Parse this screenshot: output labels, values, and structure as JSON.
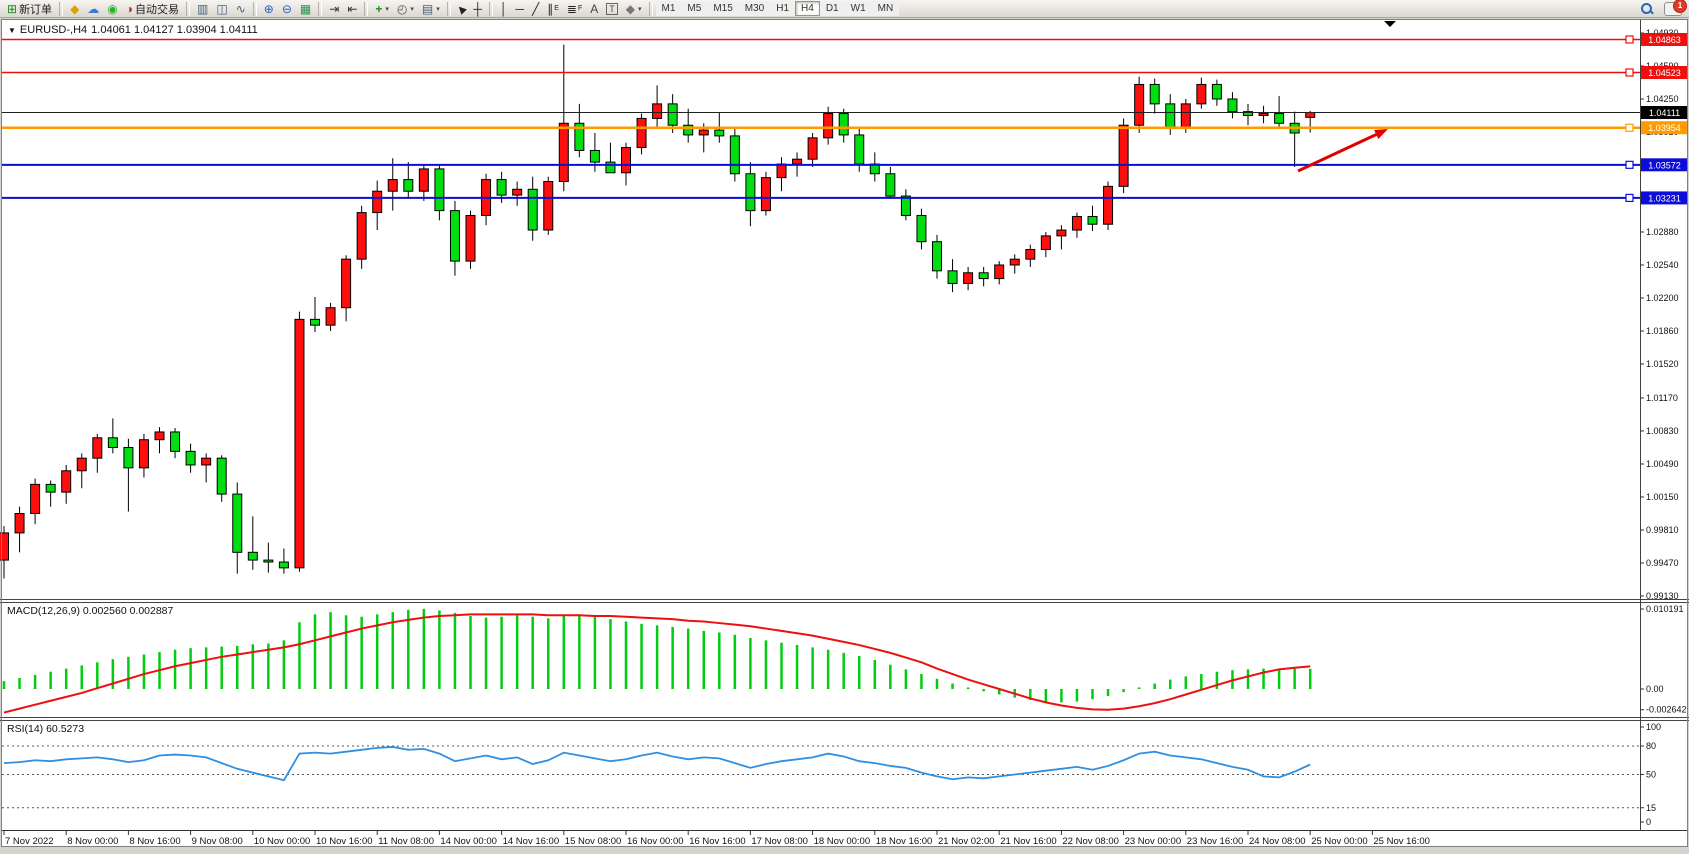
{
  "toolbar": {
    "items": [
      {
        "type": "button",
        "name": "new-order",
        "glyph": "⊞",
        "color": "#1a8f1a",
        "label": "新订单"
      },
      {
        "type": "sep"
      },
      {
        "type": "button",
        "name": "metaeditor",
        "glyph": "◆",
        "color": "#d9a300"
      },
      {
        "type": "button",
        "name": "community",
        "glyph": "☁",
        "color": "#3a7bd5"
      },
      {
        "type": "button",
        "name": "signals",
        "glyph": "◉",
        "color": "#28b428"
      },
      {
        "type": "button",
        "name": "autotrading",
        "glyph": "◑",
        "color": "#b03030",
        "label": "自动交易"
      },
      {
        "type": "sep"
      },
      {
        "type": "button",
        "name": "bar-chart",
        "glyph": "▥",
        "color": "#44617e"
      },
      {
        "type": "button",
        "name": "candlestick-chart",
        "glyph": "◫",
        "color": "#44617e"
      },
      {
        "type": "button",
        "name": "line-chart",
        "glyph": "∿",
        "color": "#44617e"
      },
      {
        "type": "sep"
      },
      {
        "type": "button",
        "name": "zoom-in",
        "glyph": "⊕",
        "color": "#2a62c8"
      },
      {
        "type": "button",
        "name": "zoom-out",
        "glyph": "⊖",
        "color": "#2a62c8"
      },
      {
        "type": "button",
        "name": "tile-windows",
        "glyph": "▦",
        "color": "#2f8f4f"
      },
      {
        "type": "sep"
      },
      {
        "type": "button",
        "name": "auto-scroll",
        "glyph": "⇥",
        "color": "#333333"
      },
      {
        "type": "button",
        "name": "chart-shift",
        "glyph": "⇤",
        "color": "#333333"
      },
      {
        "type": "sep"
      },
      {
        "type": "button",
        "name": "indicators",
        "glyph": "+",
        "color": "#1a8f1a",
        "bold": true,
        "caret": "▾"
      },
      {
        "type": "button",
        "name": "periods",
        "glyph": "◴",
        "color": "#555555",
        "caret": "▾"
      },
      {
        "type": "button",
        "name": "templates",
        "glyph": "▤",
        "color": "#44617e",
        "caret": "▾"
      },
      {
        "type": "sep"
      },
      {
        "type": "button",
        "name": "cursor",
        "glyph": "▶",
        "color": "#222222",
        "rot": true
      },
      {
        "type": "button",
        "name": "crosshair",
        "glyph": "┼",
        "color": "#222222"
      },
      {
        "type": "sep"
      },
      {
        "type": "button",
        "name": "vertical-line",
        "glyph": "│",
        "color": "#222222"
      },
      {
        "type": "button",
        "name": "horizontal-line",
        "glyph": "─",
        "color": "#222222"
      },
      {
        "type": "button",
        "name": "trendline",
        "glyph": "╱",
        "color": "#222222"
      },
      {
        "type": "button",
        "name": "equidistant-channel",
        "glyph": "∥",
        "color": "#222222",
        "sub": "E"
      },
      {
        "type": "button",
        "name": "fibonacci",
        "glyph": "≣",
        "color": "#222222",
        "sub": "F"
      },
      {
        "type": "button",
        "name": "text",
        "glyph": "A",
        "color": "#444444"
      },
      {
        "type": "button",
        "name": "text-label",
        "glyph": "T",
        "color": "#444444",
        "boxed": true
      },
      {
        "type": "button",
        "name": "arrows",
        "glyph": "◆",
        "color": "#777777",
        "caret": "▾"
      },
      {
        "type": "sep"
      }
    ],
    "timeframes": {
      "labels": [
        "M1",
        "M5",
        "M15",
        "M30",
        "H1",
        "H4",
        "D1",
        "W1",
        "MN"
      ],
      "active": "H4"
    },
    "right": {
      "chat_badge": "1"
    }
  },
  "window": {
    "dropdown_glyph": "▼",
    "title_symbol": "EURUSD-,H4",
    "title_ohlc": "1.04061 1.04127 1.03904 1.04111"
  },
  "price_axis": {
    "ticks": [
      "1.04930",
      "1.04590",
      "1.04250",
      "1.03910",
      "1.03570",
      "1.03230",
      "1.02880",
      "1.02540",
      "1.02200",
      "1.01860",
      "1.01520",
      "1.01170",
      "1.00830",
      "1.00490",
      "1.00150",
      "0.99810",
      "0.99470",
      "0.99130"
    ]
  },
  "time_axis": {
    "labels": [
      "7 Nov 2022",
      "8 Nov 00:00",
      "8 Nov 16:00",
      "9 Nov 08:00",
      "10 Nov 00:00",
      "10 Nov 16:00",
      "11 Nov 08:00",
      "14 Nov 00:00",
      "14 Nov 16:00",
      "15 Nov 08:00",
      "16 Nov 00:00",
      "16 Nov 16:00",
      "17 Nov 08:00",
      "18 Nov 00:00",
      "18 Nov 16:00",
      "21 Nov 02:00",
      "21 Nov 16:00",
      "22 Nov 08:00",
      "23 Nov 00:00",
      "23 Nov 16:00",
      "24 Nov 08:00",
      "25 Nov 00:00",
      "25 Nov 16:00"
    ]
  },
  "chart_data": [
    {
      "type": "candlestick",
      "symbol": "EURUSD-",
      "timeframe": "H4",
      "ylim": [
        0.9913,
        1.0493
      ],
      "colors": {
        "up": "#ff0e0e",
        "down": "#00dd10",
        "wick": "#000000",
        "current_line": "#222222"
      },
      "x_labels_every": 4,
      "candles": [
        [
          0.995,
          0.9985,
          0.9931,
          0.9978
        ],
        [
          0.9978,
          1.0005,
          0.9958,
          0.9998
        ],
        [
          0.9998,
          1.0034,
          0.9987,
          1.0028
        ],
        [
          1.0028,
          1.0032,
          1.0005,
          1.002
        ],
        [
          1.002,
          1.0048,
          1.0008,
          1.0042
        ],
        [
          1.0042,
          1.006,
          1.0024,
          1.0055
        ],
        [
          1.0055,
          1.008,
          1.004,
          1.0076
        ],
        [
          1.0076,
          1.0096,
          1.006,
          1.0066
        ],
        [
          1.0066,
          1.0075,
          1.0,
          1.0045
        ],
        [
          1.0045,
          1.008,
          1.0035,
          1.0074
        ],
        [
          1.0074,
          1.0087,
          1.006,
          1.0082
        ],
        [
          1.0082,
          1.0086,
          1.0055,
          1.0062
        ],
        [
          1.0062,
          1.007,
          1.004,
          1.0048
        ],
        [
          1.0048,
          1.006,
          1.003,
          1.0055
        ],
        [
          1.0055,
          1.0058,
          1.001,
          1.0018
        ],
        [
          1.0018,
          1.003,
          0.9936,
          0.9958
        ],
        [
          0.9958,
          0.9995,
          0.994,
          0.995
        ],
        [
          0.995,
          0.9968,
          0.9937,
          0.9948
        ],
        [
          0.9948,
          0.9962,
          0.9936,
          0.9942
        ],
        [
          0.9942,
          1.0206,
          0.9938,
          1.0198
        ],
        [
          1.0198,
          1.0221,
          1.0185,
          1.0192
        ],
        [
          1.0192,
          1.0215,
          1.0186,
          1.021
        ],
        [
          1.021,
          1.0264,
          1.0196,
          1.026
        ],
        [
          1.026,
          1.0315,
          1.025,
          1.0308
        ],
        [
          1.0308,
          1.0341,
          1.029,
          1.033
        ],
        [
          1.033,
          1.0364,
          1.031,
          1.0342
        ],
        [
          1.0342,
          1.036,
          1.0322,
          1.033
        ],
        [
          1.033,
          1.0358,
          1.032,
          1.0353
        ],
        [
          1.0353,
          1.0357,
          1.03,
          1.031
        ],
        [
          1.031,
          1.032,
          1.0243,
          1.0258
        ],
        [
          1.0258,
          1.031,
          1.025,
          1.0305
        ],
        [
          1.0305,
          1.0348,
          1.0295,
          1.0342
        ],
        [
          1.0342,
          1.035,
          1.0318,
          1.0326
        ],
        [
          1.0326,
          1.034,
          1.0315,
          1.0332
        ],
        [
          1.0332,
          1.0345,
          1.0279,
          1.029
        ],
        [
          1.029,
          1.0345,
          1.0285,
          1.034
        ],
        [
          1.034,
          1.0481,
          1.033,
          1.04
        ],
        [
          1.04,
          1.042,
          1.0365,
          1.0372
        ],
        [
          1.0372,
          1.039,
          1.035,
          1.036
        ],
        [
          1.036,
          1.038,
          1.0349,
          1.0349
        ],
        [
          1.0349,
          1.038,
          1.0336,
          1.0375
        ],
        [
          1.0375,
          1.041,
          1.0368,
          1.0405
        ],
        [
          1.0405,
          1.0439,
          1.0395,
          1.042
        ],
        [
          1.042,
          1.043,
          1.039,
          1.0398
        ],
        [
          1.0398,
          1.0415,
          1.038,
          1.0388
        ],
        [
          1.0388,
          1.04,
          1.037,
          1.0393
        ],
        [
          1.0393,
          1.0411,
          1.038,
          1.0387
        ],
        [
          1.0387,
          1.0395,
          1.034,
          1.0348
        ],
        [
          1.0348,
          1.036,
          1.0294,
          1.031
        ],
        [
          1.031,
          1.035,
          1.0305,
          1.0344
        ],
        [
          1.0344,
          1.0365,
          1.033,
          1.0358
        ],
        [
          1.0358,
          1.037,
          1.0345,
          1.0363
        ],
        [
          1.0363,
          1.039,
          1.0355,
          1.0385
        ],
        [
          1.0385,
          1.0417,
          1.0378,
          1.041
        ],
        [
          1.041,
          1.0415,
          1.038,
          1.0388
        ],
        [
          1.0388,
          1.0395,
          1.035,
          1.0358
        ],
        [
          1.0358,
          1.037,
          1.034,
          1.0348
        ],
        [
          1.0348,
          1.0355,
          1.0322,
          1.0325
        ],
        [
          1.0325,
          1.0332,
          1.03,
          1.0305
        ],
        [
          1.0305,
          1.0312,
          1.027,
          1.0278
        ],
        [
          1.0278,
          1.0285,
          1.024,
          1.0248
        ],
        [
          1.0248,
          1.026,
          1.0226,
          1.0235
        ],
        [
          1.0235,
          1.0252,
          1.0228,
          1.0246
        ],
        [
          1.0246,
          1.0252,
          1.0232,
          1.024
        ],
        [
          1.024,
          1.0258,
          1.0234,
          1.0254
        ],
        [
          1.0254,
          1.0265,
          1.0245,
          1.026
        ],
        [
          1.026,
          1.0275,
          1.0252,
          1.027
        ],
        [
          1.027,
          1.0288,
          1.0262,
          1.0284
        ],
        [
          1.0284,
          1.0295,
          1.027,
          1.029
        ],
        [
          1.029,
          1.0308,
          1.0282,
          1.0304
        ],
        [
          1.0304,
          1.0315,
          1.0289,
          1.0296
        ],
        [
          1.0296,
          1.034,
          1.029,
          1.0335
        ],
        [
          1.0335,
          1.0405,
          1.0328,
          1.0398
        ],
        [
          1.0398,
          1.0448,
          1.039,
          1.044
        ],
        [
          1.044,
          1.0446,
          1.041,
          1.042
        ],
        [
          1.042,
          1.043,
          1.0388,
          1.0395
        ],
        [
          1.0395,
          1.0425,
          1.039,
          1.042
        ],
        [
          1.042,
          1.0447,
          1.0415,
          1.044
        ],
        [
          1.044,
          1.0445,
          1.0418,
          1.0425
        ],
        [
          1.0425,
          1.0432,
          1.0405,
          1.0412
        ],
        [
          1.0412,
          1.042,
          1.0398,
          1.0408
        ],
        [
          1.0408,
          1.0418,
          1.04,
          1.041
        ],
        [
          1.041,
          1.0428,
          1.0395,
          1.04
        ],
        [
          1.04,
          1.0412,
          1.0355,
          1.039
        ],
        [
          1.04061,
          1.04127,
          1.03904,
          1.04111
        ]
      ],
      "hlines": [
        {
          "price": 1.04863,
          "label": "1.04863",
          "color": "#ee0f0f",
          "width": 1.5
        },
        {
          "price": 1.04523,
          "label": "1.04523",
          "color": "#ee0f0f",
          "width": 1.5
        },
        {
          "price": 1.03954,
          "label": "1.03954",
          "color": "#ff9b00",
          "width": 2.5
        },
        {
          "price": 1.03572,
          "label": "1.03572",
          "color": "#0d0dda",
          "width": 2
        },
        {
          "price": 1.03231,
          "label": "1.03231",
          "color": "#0d0dda",
          "width": 2
        }
      ],
      "current_price": {
        "value": 1.04111,
        "label": "1.04111",
        "color": "#000000"
      },
      "arrow": {
        "from": [
          1298,
          171
        ],
        "to": [
          1388,
          129
        ],
        "color": "#e00000"
      }
    },
    {
      "type": "bar",
      "name": "MACD(12,26,9)",
      "label": "MACD(12,26,9) 0.002560 0.002887",
      "current": "0.002560 0.002887",
      "axis_ticks": [
        "0.010191",
        "0.00",
        "-0.002642"
      ],
      "ylim": [
        -0.002642,
        0.010191
      ],
      "colors": {
        "hist": "#00cc10",
        "signal": "#ee0f0f"
      },
      "values": [
        0.001,
        0.0014,
        0.0018,
        0.0022,
        0.0026,
        0.003,
        0.0034,
        0.0038,
        0.0041,
        0.0044,
        0.0047,
        0.005,
        0.0052,
        0.0053,
        0.0054,
        0.0055,
        0.0057,
        0.0058,
        0.0062,
        0.0085,
        0.0095,
        0.0098,
        0.0094,
        0.0092,
        0.0095,
        0.0098,
        0.0101,
        0.0102,
        0.01,
        0.0097,
        0.0093,
        0.0091,
        0.0092,
        0.0094,
        0.0092,
        0.009,
        0.0093,
        0.0095,
        0.0092,
        0.0089,
        0.0086,
        0.0083,
        0.0081,
        0.0079,
        0.0077,
        0.0074,
        0.0072,
        0.0069,
        0.0065,
        0.0062,
        0.0059,
        0.0056,
        0.0053,
        0.005,
        0.0046,
        0.0042,
        0.0037,
        0.0031,
        0.0025,
        0.0019,
        0.0013,
        0.0007,
        0.0002,
        -0.0003,
        -0.0007,
        -0.0011,
        -0.0014,
        -0.0016,
        -0.0017,
        -0.0016,
        -0.0013,
        -0.0009,
        -0.0004,
        0.0002,
        0.0007,
        0.0012,
        0.0016,
        0.0019,
        0.0022,
        0.0024,
        0.0025,
        0.0026,
        0.0026,
        0.0026,
        0.00256
      ],
      "signal": [
        -0.003,
        -0.0025,
        -0.002,
        -0.0015,
        -0.001,
        -0.0005,
        0.0001,
        0.0007,
        0.0013,
        0.0019,
        0.0024,
        0.0029,
        0.0033,
        0.0037,
        0.0041,
        0.0044,
        0.0047,
        0.005,
        0.0053,
        0.0057,
        0.0062,
        0.0067,
        0.0072,
        0.0077,
        0.0081,
        0.0085,
        0.0088,
        0.0091,
        0.0093,
        0.0094,
        0.0095,
        0.0095,
        0.0095,
        0.0095,
        0.0095,
        0.0094,
        0.0094,
        0.0094,
        0.0093,
        0.0093,
        0.0092,
        0.0091,
        0.009,
        0.0089,
        0.0087,
        0.0086,
        0.0084,
        0.0082,
        0.008,
        0.0077,
        0.0074,
        0.0071,
        0.0068,
        0.0064,
        0.006,
        0.0056,
        0.0051,
        0.0046,
        0.004,
        0.0034,
        0.0026,
        0.0019,
        0.0012,
        0.0006,
        0.0,
        -0.0006,
        -0.0012,
        -0.0017,
        -0.0021,
        -0.0024,
        -0.0026,
        -0.002642,
        -0.0025,
        -0.0022,
        -0.0018,
        -0.0013,
        -0.0007,
        -0.0001,
        0.0005,
        0.0011,
        0.0016,
        0.0021,
        0.0025,
        0.0027,
        0.002887
      ]
    },
    {
      "type": "line",
      "name": "RSI(14)",
      "label": "RSI(14) 60.5273",
      "current": "60.5273",
      "levels": [
        80,
        50,
        15
      ],
      "axis_ticks": [
        "100",
        "80",
        "50",
        "15",
        "0"
      ],
      "ylim": [
        0,
        100
      ],
      "color": "#2f8fe0",
      "values": [
        62,
        63,
        65,
        64,
        66,
        67,
        68,
        66,
        63,
        65,
        70,
        71,
        70,
        68,
        62,
        56,
        52,
        48,
        44,
        72,
        73,
        72,
        74,
        76,
        78,
        79,
        76,
        77,
        72,
        64,
        67,
        70,
        66,
        68,
        61,
        65,
        73,
        70,
        67,
        64,
        66,
        70,
        73,
        69,
        66,
        68,
        67,
        62,
        57,
        61,
        64,
        66,
        68,
        72,
        69,
        64,
        62,
        59,
        57,
        52,
        48,
        45,
        47,
        46,
        48,
        50,
        52,
        54,
        56,
        58,
        55,
        59,
        65,
        72,
        74,
        70,
        68,
        66,
        62,
        58,
        55,
        48,
        47,
        53,
        60.5273
      ]
    }
  ]
}
